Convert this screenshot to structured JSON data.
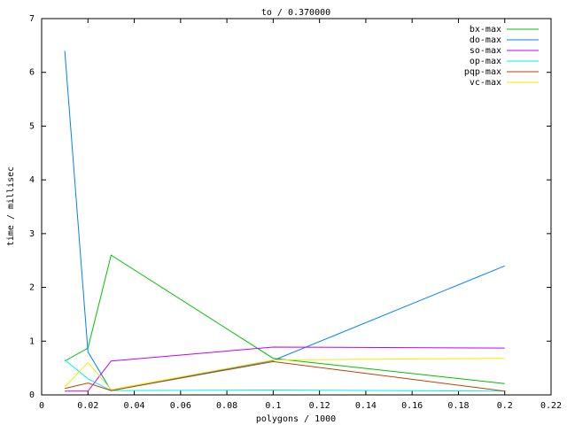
{
  "chart_data": {
    "type": "line",
    "title": "to / 0.370000",
    "x_label": "polygons / 1000",
    "y_label": "time / millisec",
    "x": [
      0.01,
      0.02,
      0.03,
      0.1,
      0.2
    ],
    "series": [
      {
        "name": "bx-max",
        "color": "#00c000",
        "values": [
          0.63,
          0.87,
          2.6,
          0.68,
          0.21
        ]
      },
      {
        "name": "do-max",
        "color": "#0080ff",
        "values": [
          6.4,
          0.8,
          0.08,
          0.64,
          2.4
        ]
      },
      {
        "name": "so-max",
        "color": "#c000ff",
        "values": [
          0.07,
          0.07,
          0.63,
          0.89,
          0.87
        ]
      },
      {
        "name": "op-max",
        "color": "#00eeee",
        "values": [
          0.65,
          0.3,
          0.08,
          0.09,
          0.07
        ]
      },
      {
        "name": "pqp-max",
        "color": "#c04000",
        "values": [
          0.12,
          0.22,
          0.08,
          0.62,
          0.07
        ]
      },
      {
        "name": "vc-max",
        "color": "#eeee00",
        "values": [
          0.15,
          0.6,
          0.1,
          0.65,
          0.68
        ]
      }
    ],
    "xlim": [
      0,
      0.22
    ],
    "xticks": [
      0,
      0.02,
      0.04,
      0.06,
      0.08,
      0.1,
      0.12,
      0.14,
      0.16,
      0.18,
      0.2,
      0.22
    ],
    "ylim": [
      0,
      7
    ],
    "yticks": [
      0,
      1,
      2,
      3,
      4,
      5,
      6,
      7
    ],
    "legend": "top-right"
  }
}
